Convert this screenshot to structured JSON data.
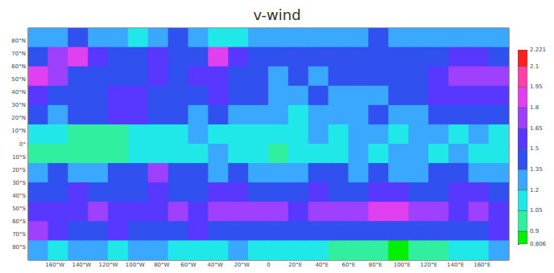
{
  "chart_data": {
    "type": "heatmap",
    "title": "v-wind",
    "grid": false,
    "lon": [
      -172.5,
      -157.5,
      -142.5,
      -127.5,
      -112.5,
      -97.5,
      -82.5,
      -67.5,
      -52.5,
      -37.5,
      -22.5,
      -7.5,
      7.5,
      22.5,
      37.5,
      52.5,
      67.5,
      82.5,
      97.5,
      112.5,
      127.5,
      142.5,
      157.5,
      172.5
    ],
    "lat": [
      82.5,
      67.5,
      52.5,
      37.5,
      22.5,
      7.5,
      -7.5,
      -22.5,
      -37.5,
      -52.5,
      -67.5,
      -82.5
    ],
    "values": [
      [
        1.25,
        1.3,
        1.4,
        1.3,
        1.25,
        1.2,
        1.3,
        1.4,
        1.3,
        1.2,
        1.2,
        1.25,
        1.3,
        1.35,
        1.3,
        1.25,
        1.3,
        1.4,
        1.35,
        1.3,
        1.25,
        1.3,
        1.35,
        1.3
      ],
      [
        1.45,
        1.7,
        1.9,
        1.6,
        1.5,
        1.45,
        1.6,
        1.5,
        1.4,
        1.85,
        1.6,
        1.5,
        1.45,
        1.5,
        1.4,
        1.5,
        1.4,
        1.45,
        1.5,
        1.4,
        1.5,
        1.6,
        1.55,
        1.5
      ],
      [
        1.95,
        1.7,
        1.5,
        1.45,
        1.5,
        1.45,
        1.55,
        1.5,
        1.6,
        1.55,
        1.5,
        1.4,
        1.35,
        1.4,
        1.35,
        1.5,
        1.45,
        1.4,
        1.45,
        1.5,
        1.55,
        1.7,
        1.75,
        1.8
      ],
      [
        1.6,
        1.5,
        1.45,
        1.4,
        1.55,
        1.6,
        1.5,
        1.45,
        1.5,
        1.6,
        1.45,
        1.4,
        1.3,
        1.35,
        1.4,
        1.3,
        1.35,
        1.3,
        1.4,
        1.45,
        1.55,
        1.6,
        1.65,
        1.6
      ],
      [
        1.4,
        1.35,
        1.45,
        1.5,
        1.6,
        1.65,
        1.5,
        1.4,
        1.35,
        1.4,
        1.3,
        1.35,
        1.25,
        1.2,
        1.3,
        1.35,
        1.3,
        1.4,
        1.35,
        1.3,
        1.4,
        1.45,
        1.5,
        1.4
      ],
      [
        1.15,
        1.1,
        1.05,
        1.0,
        1.05,
        1.1,
        1.15,
        1.2,
        1.25,
        1.2,
        1.15,
        1.1,
        1.2,
        1.15,
        1.25,
        1.2,
        1.3,
        1.25,
        1.2,
        1.3,
        1.25,
        1.2,
        1.25,
        1.2
      ],
      [
        1.05,
        1.0,
        0.95,
        1.0,
        1.05,
        1.15,
        1.2,
        1.1,
        1.2,
        1.25,
        1.15,
        1.1,
        1.05,
        1.1,
        1.2,
        1.15,
        1.25,
        1.2,
        1.3,
        1.25,
        1.2,
        1.25,
        1.2,
        1.1
      ],
      [
        1.35,
        1.4,
        1.3,
        1.35,
        1.4,
        1.5,
        1.75,
        1.45,
        1.4,
        1.35,
        1.4,
        1.3,
        1.35,
        1.3,
        1.4,
        1.45,
        1.35,
        1.4,
        1.3,
        1.35,
        1.45,
        1.4,
        1.3,
        1.35
      ],
      [
        1.45,
        1.5,
        1.55,
        1.4,
        1.5,
        1.45,
        1.6,
        1.5,
        1.45,
        1.55,
        1.6,
        1.5,
        1.45,
        1.5,
        1.55,
        1.45,
        1.5,
        1.6,
        1.55,
        1.5,
        1.45,
        1.55,
        1.6,
        1.5
      ],
      [
        1.6,
        1.55,
        1.6,
        1.7,
        1.6,
        1.55,
        1.65,
        1.7,
        1.6,
        1.75,
        1.7,
        1.8,
        1.7,
        1.65,
        1.75,
        1.7,
        1.8,
        1.9,
        1.95,
        1.75,
        1.7,
        1.65,
        1.7,
        1.6
      ],
      [
        1.75,
        1.6,
        1.5,
        1.45,
        1.55,
        1.5,
        1.45,
        1.5,
        1.55,
        1.5,
        1.45,
        1.5,
        1.4,
        1.45,
        1.5,
        1.45,
        1.4,
        1.5,
        1.45,
        1.4,
        1.5,
        1.45,
        1.5,
        1.55
      ],
      [
        1.25,
        1.2,
        1.25,
        1.3,
        1.2,
        1.25,
        1.3,
        1.2,
        1.15,
        1.2,
        1.25,
        1.2,
        1.15,
        1.2,
        1.1,
        1.05,
        1.0,
        0.95,
        0.9,
        0.95,
        1.05,
        1.15,
        1.2,
        1.25
      ]
    ],
    "xlim": [
      -180,
      180
    ],
    "xticks": [
      {
        "value": -160,
        "label": "160°W"
      },
      {
        "value": -140,
        "label": "140°W"
      },
      {
        "value": -120,
        "label": "120°W"
      },
      {
        "value": -100,
        "label": "100°W"
      },
      {
        "value": -80,
        "label": "80°W"
      },
      {
        "value": -60,
        "label": "60°W"
      },
      {
        "value": -40,
        "label": "40°W"
      },
      {
        "value": -20,
        "label": "20°W"
      },
      {
        "value": 0,
        "label": "0"
      },
      {
        "value": 20,
        "label": "20°E"
      },
      {
        "value": 40,
        "label": "40°E"
      },
      {
        "value": 60,
        "label": "60°E"
      },
      {
        "value": 80,
        "label": "80°E"
      },
      {
        "value": 100,
        "label": "100°E"
      },
      {
        "value": 120,
        "label": "120°E"
      },
      {
        "value": 140,
        "label": "140°E"
      },
      {
        "value": 160,
        "label": "160°E"
      }
    ],
    "ylim": [
      -90,
      90
    ],
    "yticks": [
      {
        "value": -80,
        "label": "80°S"
      },
      {
        "value": -70,
        "label": "70°S"
      },
      {
        "value": -60,
        "label": "60°S"
      },
      {
        "value": -50,
        "label": "50°S"
      },
      {
        "value": -40,
        "label": "40°S"
      },
      {
        "value": -30,
        "label": "30°S"
      },
      {
        "value": -20,
        "label": "20°S"
      },
      {
        "value": -10,
        "label": "10°S"
      },
      {
        "value": 0,
        "label": "0°"
      },
      {
        "value": 10,
        "label": "10°N"
      },
      {
        "value": 20,
        "label": "20°N"
      },
      {
        "value": 30,
        "label": "30°N"
      },
      {
        "value": 40,
        "label": "40°N"
      },
      {
        "value": 50,
        "label": "50°N"
      },
      {
        "value": 60,
        "label": "60°N"
      },
      {
        "value": 70,
        "label": "70°N"
      },
      {
        "value": 80,
        "label": "80°N"
      }
    ],
    "colorbar": {
      "range": [
        0.806,
        2.221
      ],
      "ticks": [
        0.806,
        0.9,
        1.05,
        1.2,
        1.35,
        1.5,
        1.65,
        1.8,
        1.95,
        2.1,
        2.221
      ],
      "colors": [
        "#00f000",
        "#30f0a0",
        "#20e8e8",
        "#3aa8ff",
        "#3050f0",
        "#5838ff",
        "#a040ff",
        "#e040f0",
        "#ff40a8",
        "#ff2020"
      ]
    }
  }
}
